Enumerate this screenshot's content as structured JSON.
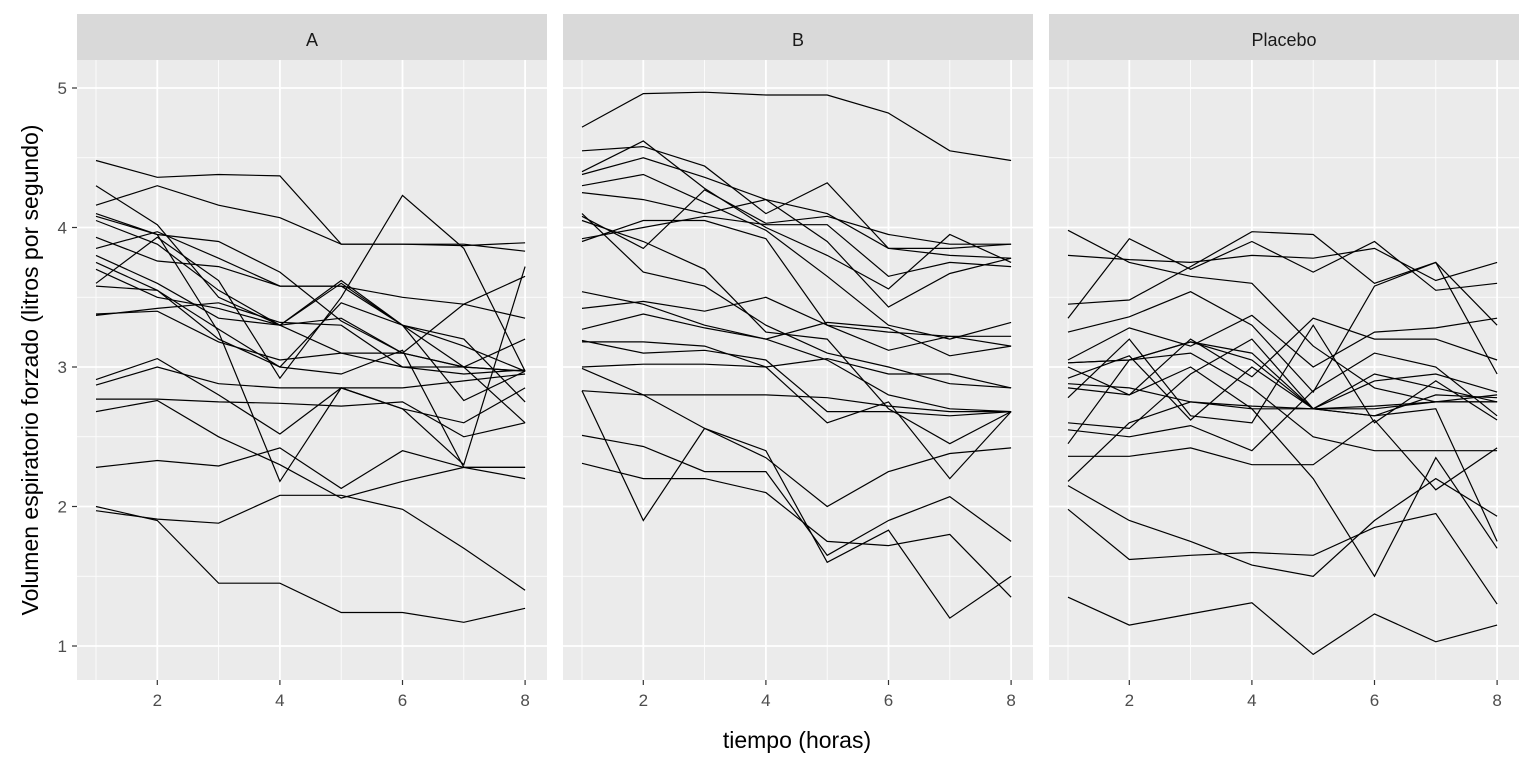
{
  "chart_data": {
    "type": "line",
    "title": "",
    "xlabel": "tiempo (horas)",
    "ylabel": "Volumen espiratorio forzado (litros por segundo)",
    "xlim": [
      0.7,
      8.35
    ],
    "ylim": [
      0.756,
      5.2
    ],
    "x": [
      1,
      2,
      3,
      4,
      5,
      6,
      7,
      8
    ],
    "x_ticks": [
      2,
      4,
      6,
      8
    ],
    "y_ticks": [
      1,
      2,
      3,
      4,
      5
    ],
    "grid": true,
    "line_color": "#000000",
    "panel_background": "#ebebeb",
    "strip_background": "#d9d9d9",
    "facets": [
      {
        "label": "A",
        "series": [
          [
            4.48,
            4.36,
            4.38,
            4.37,
            3.88,
            3.88,
            3.88,
            3.83
          ],
          [
            4.3,
            4.02,
            3.5,
            3.3,
            3.1,
            3.0,
            2.95,
            2.98
          ],
          [
            4.16,
            4.3,
            4.16,
            4.07,
            3.88,
            3.88,
            3.87,
            3.89
          ],
          [
            3.6,
            3.93,
            3.62,
            2.92,
            3.5,
            4.23,
            3.85,
            2.97
          ],
          [
            4.08,
            3.95,
            3.9,
            3.68,
            3.33,
            3.1,
            3.0,
            2.97
          ],
          [
            4.05,
            3.88,
            3.55,
            3.3,
            3.62,
            3.3,
            3.15,
            2.97
          ],
          [
            3.93,
            3.76,
            3.72,
            3.58,
            3.58,
            3.5,
            3.45,
            3.35
          ],
          [
            3.85,
            3.97,
            3.78,
            3.58,
            3.58,
            3.3,
            3.0,
            2.97
          ],
          [
            3.8,
            3.6,
            3.35,
            3.3,
            3.35,
            3.1,
            3.0,
            2.6
          ],
          [
            3.75,
            3.55,
            3.2,
            3.0,
            3.46,
            3.3,
            3.2,
            2.75
          ],
          [
            3.7,
            3.5,
            3.42,
            3.3,
            3.6,
            3.3,
            2.76,
            2.97
          ],
          [
            3.37,
            3.42,
            3.46,
            3.32,
            3.3,
            3.0,
            3.0,
            3.2
          ],
          [
            3.38,
            3.4,
            3.18,
            3.05,
            3.1,
            3.1,
            3.45,
            3.65
          ],
          [
            2.91,
            3.06,
            2.8,
            2.52,
            2.85,
            2.85,
            2.9,
            2.95
          ],
          [
            2.87,
            3.0,
            2.88,
            2.85,
            2.85,
            2.7,
            2.6,
            2.85
          ],
          [
            2.77,
            2.77,
            2.75,
            2.74,
            2.72,
            2.75,
            2.5,
            2.6
          ],
          [
            2.68,
            2.76,
            2.5,
            2.3,
            2.06,
            2.18,
            2.28,
            2.2
          ],
          [
            4.1,
            3.95,
            3.25,
            2.18,
            2.85,
            2.7,
            2.3,
            3.72
          ],
          [
            2.28,
            2.33,
            2.29,
            2.42,
            2.13,
            2.4,
            2.28,
            2.28
          ],
          [
            1.97,
            1.91,
            1.88,
            2.08,
            2.08,
            1.98,
            1.7,
            1.4
          ],
          [
            2.0,
            1.9,
            1.45,
            1.45,
            1.24,
            1.24,
            1.17,
            1.27
          ],
          [
            3.58,
            3.55,
            3.27,
            3.0,
            2.95,
            3.12,
            2.28,
            2.28
          ]
        ]
      },
      {
        "label": "B",
        "series": [
          [
            4.72,
            4.96,
            4.97,
            4.95,
            4.95,
            4.82,
            4.55,
            4.48
          ],
          [
            4.55,
            4.58,
            4.44,
            4.1,
            4.32,
            3.85,
            3.85,
            3.88
          ],
          [
            4.4,
            4.62,
            4.28,
            4.0,
            3.8,
            3.56,
            3.95,
            3.75
          ],
          [
            4.38,
            4.5,
            4.36,
            4.2,
            4.1,
            3.85,
            3.8,
            3.78
          ],
          [
            4.3,
            4.38,
            4.18,
            3.98,
            3.65,
            3.3,
            3.2,
            3.32
          ],
          [
            4.25,
            4.2,
            4.1,
            4.2,
            3.9,
            3.43,
            3.67,
            3.78
          ],
          [
            4.08,
            3.85,
            4.27,
            4.03,
            4.08,
            3.95,
            3.88,
            3.88
          ],
          [
            3.92,
            4.0,
            4.08,
            4.02,
            4.02,
            3.65,
            3.75,
            3.72
          ],
          [
            3.9,
            4.05,
            4.05,
            3.92,
            3.3,
            3.12,
            3.22,
            3.22
          ],
          [
            4.1,
            3.68,
            3.58,
            3.3,
            3.1,
            3.0,
            2.88,
            2.85
          ],
          [
            3.54,
            3.45,
            3.3,
            3.2,
            3.05,
            2.8,
            2.7,
            2.68
          ],
          [
            3.42,
            3.47,
            3.4,
            3.5,
            3.3,
            3.25,
            3.22,
            3.15
          ],
          [
            3.27,
            3.38,
            3.28,
            3.2,
            3.32,
            3.28,
            3.08,
            3.15
          ],
          [
            3.18,
            3.18,
            3.15,
            3.0,
            3.06,
            2.95,
            2.95,
            2.85
          ],
          [
            3.19,
            3.1,
            3.12,
            3.05,
            2.68,
            2.68,
            2.65,
            2.68
          ],
          [
            3.0,
            3.02,
            3.02,
            3.0,
            2.6,
            2.75,
            2.2,
            2.68
          ],
          [
            2.83,
            2.8,
            2.8,
            2.8,
            2.78,
            2.72,
            2.68,
            2.68
          ],
          [
            2.99,
            2.8,
            2.56,
            2.35,
            2.0,
            2.25,
            2.38,
            2.42
          ],
          [
            2.51,
            2.43,
            2.25,
            2.25,
            1.65,
            1.9,
            2.07,
            1.75
          ],
          [
            2.31,
            2.2,
            2.2,
            2.1,
            1.75,
            1.72,
            1.8,
            1.35
          ],
          [
            2.83,
            1.9,
            2.56,
            2.4,
            1.6,
            1.83,
            1.2,
            1.5
          ],
          [
            4.05,
            3.9,
            3.7,
            3.25,
            3.2,
            2.7,
            2.45,
            2.68
          ]
        ]
      },
      {
        "label": "Placebo",
        "series": [
          [
            3.98,
            3.75,
            3.65,
            3.6,
            3.15,
            2.85,
            2.75,
            2.75
          ],
          [
            3.8,
            3.77,
            3.75,
            3.8,
            3.78,
            3.85,
            3.62,
            3.75
          ],
          [
            3.45,
            3.48,
            3.72,
            3.97,
            3.95,
            3.6,
            3.75,
            2.95
          ],
          [
            3.35,
            3.92,
            3.7,
            3.9,
            3.68,
            3.9,
            3.55,
            3.6
          ],
          [
            3.25,
            3.36,
            3.54,
            3.3,
            2.82,
            3.58,
            3.75,
            3.3
          ],
          [
            3.05,
            3.28,
            3.15,
            3.37,
            3.0,
            3.25,
            3.28,
            3.35
          ],
          [
            3.03,
            3.05,
            3.18,
            3.1,
            2.7,
            2.9,
            2.95,
            2.82
          ],
          [
            3.0,
            2.8,
            3.2,
            2.93,
            3.35,
            3.2,
            3.2,
            3.05
          ],
          [
            2.92,
            3.08,
            2.62,
            3.0,
            2.7,
            2.7,
            2.75,
            2.8
          ],
          [
            2.88,
            2.85,
            2.75,
            2.72,
            2.7,
            2.72,
            2.75,
            2.75
          ],
          [
            2.85,
            2.8,
            3.0,
            2.7,
            2.7,
            2.95,
            2.85,
            2.75
          ],
          [
            2.78,
            3.2,
            2.65,
            2.6,
            3.3,
            2.6,
            2.9,
            2.62
          ],
          [
            2.6,
            2.56,
            2.95,
            3.2,
            2.7,
            2.65,
            2.8,
            2.78
          ],
          [
            2.55,
            2.5,
            2.58,
            2.4,
            2.83,
            3.1,
            3.0,
            2.65
          ],
          [
            2.45,
            3.05,
            3.1,
            2.85,
            2.5,
            2.4,
            2.4,
            2.4
          ],
          [
            2.36,
            2.36,
            2.42,
            2.3,
            2.3,
            2.62,
            2.12,
            2.42
          ],
          [
            2.18,
            2.6,
            2.75,
            2.7,
            2.2,
            1.5,
            2.35,
            1.7
          ],
          [
            2.15,
            1.9,
            1.75,
            1.58,
            1.5,
            1.9,
            2.2,
            1.93
          ],
          [
            1.98,
            1.62,
            1.65,
            1.67,
            1.65,
            1.85,
            1.95,
            1.3
          ],
          [
            1.35,
            1.15,
            1.23,
            1.31,
            0.94,
            1.23,
            1.03,
            1.15
          ],
          [
            3.03,
            3.05,
            3.18,
            3.05,
            2.7,
            2.65,
            2.7,
            1.75
          ]
        ]
      }
    ]
  }
}
